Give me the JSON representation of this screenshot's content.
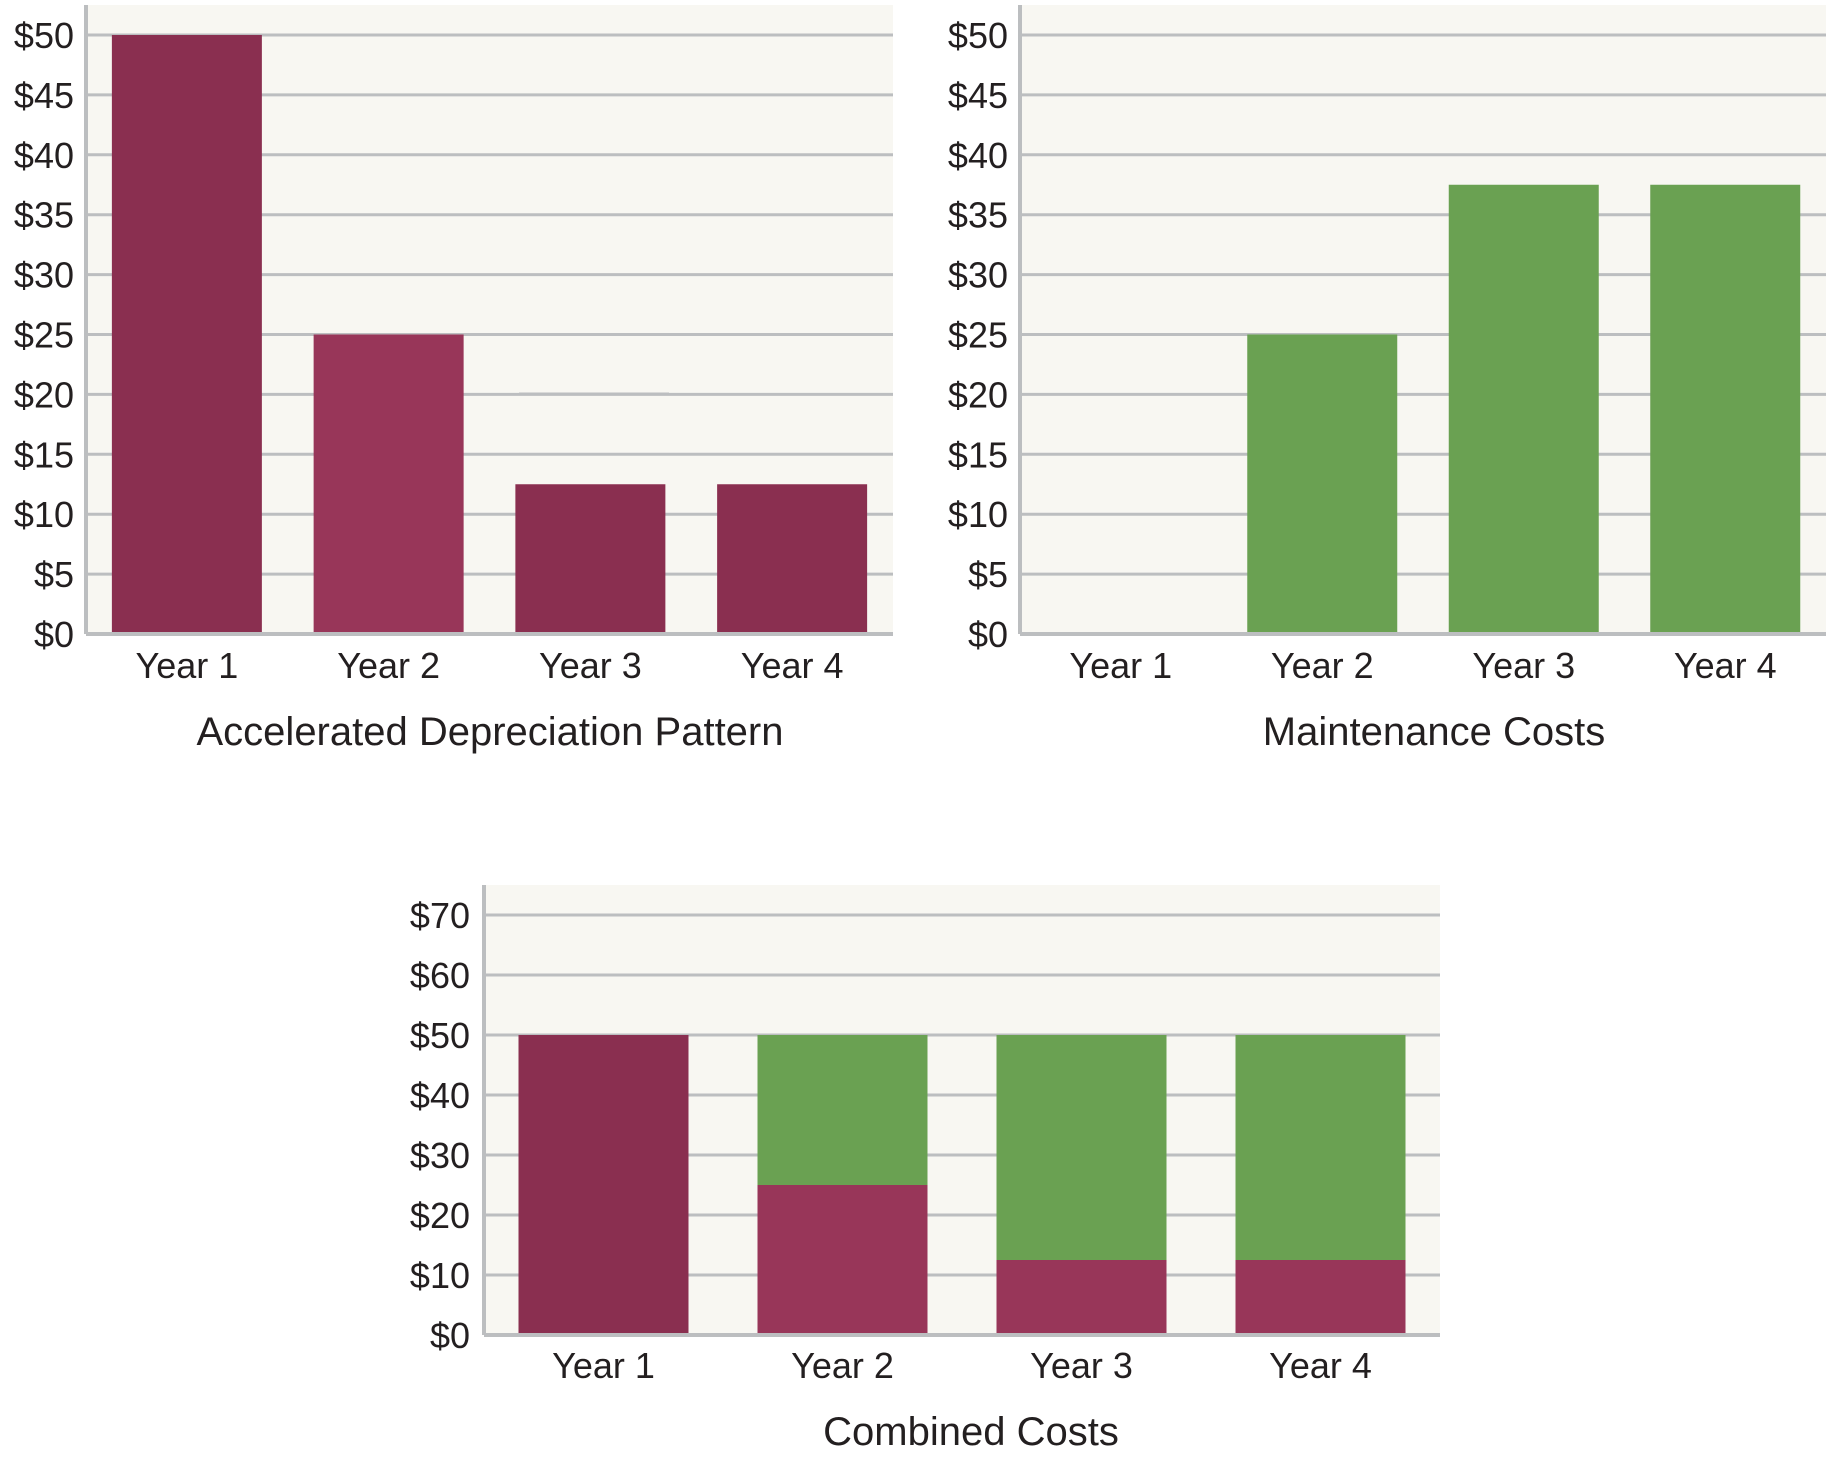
{
  "colors": {
    "plot_bg": "#f8f7f2",
    "grid": "#bcbec0",
    "depreciation": "#8a2f50",
    "depreciation_light": "#983659",
    "maintenance": "#6aa152",
    "text": "#231f20"
  },
  "chart_data": [
    {
      "type": "bar",
      "title": "Accelerated Depreciation Pattern",
      "categories": [
        "Year 1",
        "Year 2",
        "Year 3",
        "Year 4"
      ],
      "series": [
        {
          "values": [
            50,
            25,
            12.5,
            12.5
          ]
        }
      ],
      "ylim": [
        0,
        50
      ],
      "yticks": [
        0,
        5,
        10,
        15,
        20,
        25,
        30,
        35,
        40,
        45,
        50
      ],
      "ytick_labels": [
        "$0",
        "$5",
        "$10",
        "$15",
        "$20",
        "$25",
        "$30",
        "$35",
        "$40",
        "$45",
        "$50"
      ],
      "grid": true
    },
    {
      "type": "bar",
      "title": "Maintenance Costs",
      "categories": [
        "Year 1",
        "Year 2",
        "Year 3",
        "Year 4"
      ],
      "series": [
        {
          "values": [
            0,
            25,
            37.5,
            37.5
          ]
        }
      ],
      "ylim": [
        0,
        50
      ],
      "yticks": [
        0,
        5,
        10,
        15,
        20,
        25,
        30,
        35,
        40,
        45,
        50
      ],
      "ytick_labels": [
        "$0",
        "$5",
        "$10",
        "$15",
        "$20",
        "$25",
        "$30",
        "$35",
        "$40",
        "$45",
        "$50"
      ],
      "grid": true
    },
    {
      "type": "bar",
      "stacked": true,
      "title": "Combined Costs",
      "categories": [
        "Year 1",
        "Year 2",
        "Year 3",
        "Year 4"
      ],
      "series": [
        {
          "values": [
            50,
            25,
            12.5,
            12.5
          ]
        },
        {
          "values": [
            0,
            25,
            37.5,
            37.5
          ]
        }
      ],
      "ylim": [
        0,
        70
      ],
      "yticks": [
        0,
        10,
        20,
        30,
        40,
        50,
        60,
        70
      ],
      "ytick_labels": [
        "$0",
        "$10",
        "$20",
        "$30",
        "$40",
        "$50",
        "$60",
        "$70"
      ],
      "grid": true
    }
  ]
}
